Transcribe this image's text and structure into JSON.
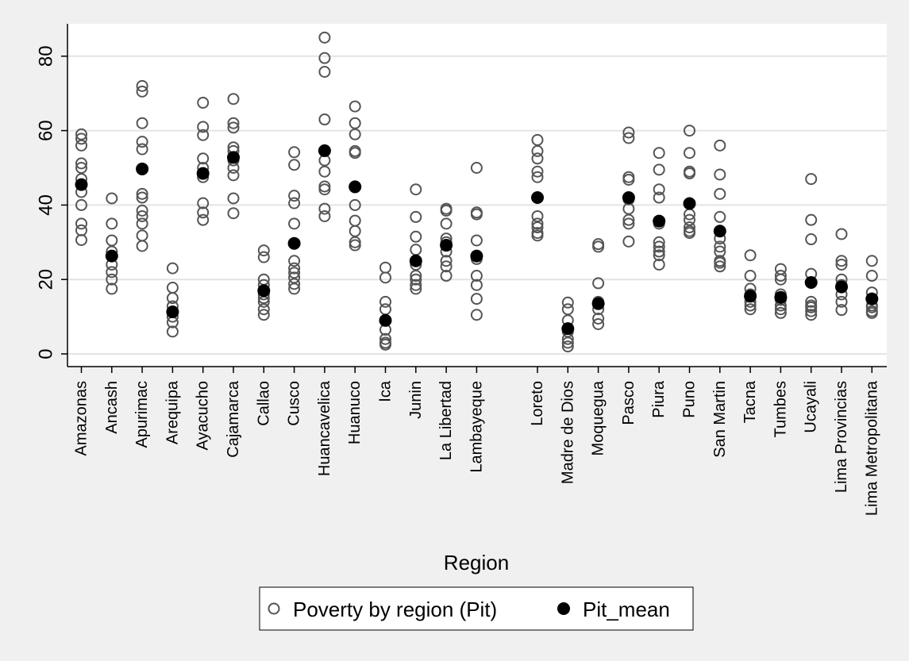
{
  "chart_data": {
    "type": "scatter",
    "xlabel": "Region",
    "ylabel": "",
    "ylim": [
      0,
      90
    ],
    "yticks": [
      0,
      20,
      40,
      60,
      80
    ],
    "grid": true,
    "legend_position": "bottom",
    "colors": {
      "observed": "#555555",
      "mean": "#000000",
      "plot_bg": "#ffffff",
      "grid": "#e4e4e4",
      "page_bg": "#f0f0f0"
    },
    "categories": [
      "Amazonas",
      "Ancash",
      "Apurimac",
      "Arequipa",
      "Ayacucho",
      "Cajamarca",
      "Callao",
      "Cusco",
      "Huancavelica",
      "Huanuco",
      "Ica",
      "Junin",
      "La Libertad",
      "Lambayeque",
      "Loreto",
      "Madre de Dios",
      "Moquegua",
      "Pasco",
      "Piura",
      "Puno",
      "San Martin",
      "Tacna",
      "Tumbes",
      "Ucayali",
      "Lima Provincias",
      "Lima Metropolitana"
    ],
    "category_slots": [
      1,
      2,
      3,
      4,
      5,
      6,
      7,
      8,
      9,
      10,
      11,
      12,
      13,
      14,
      16,
      17,
      18,
      19,
      20,
      21,
      22,
      23,
      24,
      25,
      26,
      27
    ],
    "series": [
      {
        "name": "Poverty by region (Pit)",
        "marker": "hollow-circle",
        "values": [
          [
            59.0,
            57.8,
            56.0,
            51.2,
            50.0,
            47.0,
            43.5,
            40.0,
            35.0,
            33.2,
            30.6
          ],
          [
            41.8,
            35.0,
            30.5,
            27.5,
            24.0,
            22.0,
            20.0,
            17.5
          ],
          [
            72.0,
            70.5,
            62.0,
            57.0,
            55.0,
            43.0,
            42.0,
            38.5,
            37.0,
            35.0,
            31.8,
            29.0
          ],
          [
            23.0,
            17.8,
            15.0,
            12.8,
            10.0,
            8.5,
            6.0
          ],
          [
            67.5,
            61.0,
            58.8,
            52.5,
            50.0,
            47.5,
            40.5,
            38.0,
            36.0
          ],
          [
            68.5,
            62.0,
            60.8,
            55.5,
            54.5,
            52.0,
            50.0,
            48.0,
            41.8,
            37.8
          ],
          [
            27.8,
            26.0,
            20.0,
            18.5,
            16.0,
            15.0,
            14.0,
            12.0,
            10.5
          ],
          [
            54.2,
            50.8,
            42.5,
            40.5,
            35.0,
            25.0,
            23.0,
            21.8,
            20.5,
            18.8,
            17.5
          ],
          [
            85.0,
            79.5,
            75.8,
            63.0,
            52.0,
            49.0,
            45.0,
            44.2,
            39.0,
            37.0
          ],
          [
            66.5,
            62.0,
            59.0,
            54.5,
            54.0,
            40.0,
            35.8,
            33.0,
            30.0,
            29.2
          ],
          [
            23.2,
            20.5,
            14.0,
            12.0,
            6.5,
            4.0,
            3.0,
            2.5
          ],
          [
            44.2,
            36.8,
            31.5,
            28.0,
            24.0,
            21.0,
            20.0,
            18.5,
            17.5
          ],
          [
            39.0,
            38.5,
            35.0,
            31.0,
            30.0,
            27.5,
            25.0,
            23.5,
            21.0
          ],
          [
            50.0,
            38.0,
            37.5,
            30.5,
            25.5,
            21.0,
            18.5,
            14.8,
            10.5
          ],
          [
            57.5,
            54.5,
            52.5,
            49.0,
            47.5,
            37.0,
            35.0,
            34.0,
            32.5,
            31.8
          ],
          [
            13.8,
            12.0,
            9.0,
            6.0,
            4.0,
            3.0,
            2.0
          ],
          [
            29.5,
            28.8,
            19.0,
            14.0,
            13.5,
            12.0,
            9.5,
            8.0
          ],
          [
            59.5,
            58.0,
            47.5,
            46.8,
            41.5,
            39.0,
            36.0,
            35.0,
            30.2
          ],
          [
            54.0,
            49.5,
            44.2,
            42.0,
            35.0,
            30.0,
            28.8,
            27.5,
            26.5,
            24.0
          ],
          [
            60.0,
            54.0,
            49.0,
            48.5,
            37.5,
            36.0,
            34.0,
            33.0,
            32.5
          ],
          [
            56.0,
            48.2,
            43.0,
            36.8,
            31.0,
            28.8,
            27.5,
            25.0,
            24.5,
            23.5
          ],
          [
            26.5,
            21.0,
            17.5,
            16.0,
            14.0,
            13.0,
            12.0
          ],
          [
            22.8,
            21.0,
            20.0,
            16.0,
            14.5,
            13.0,
            12.0,
            11.0
          ],
          [
            47.0,
            36.0,
            30.8,
            21.5,
            14.0,
            13.0,
            12.5,
            11.5,
            10.5
          ],
          [
            32.2,
            25.0,
            24.0,
            20.0,
            18.5,
            16.0,
            14.0,
            11.8
          ],
          [
            25.0,
            21.0,
            16.5,
            14.8,
            13.0,
            12.5,
            11.5,
            11.0
          ]
        ]
      },
      {
        "name": "Pit_mean",
        "marker": "filled-circle",
        "values": [
          45.5,
          26.3,
          49.7,
          11.3,
          48.5,
          52.8,
          17.0,
          29.7,
          54.6,
          44.9,
          9.0,
          25.0,
          29.2,
          26.3,
          42.0,
          6.8,
          13.5,
          42.0,
          35.7,
          40.4,
          33.0,
          15.5,
          15.2,
          19.2,
          18.0,
          14.8
        ]
      }
    ]
  }
}
